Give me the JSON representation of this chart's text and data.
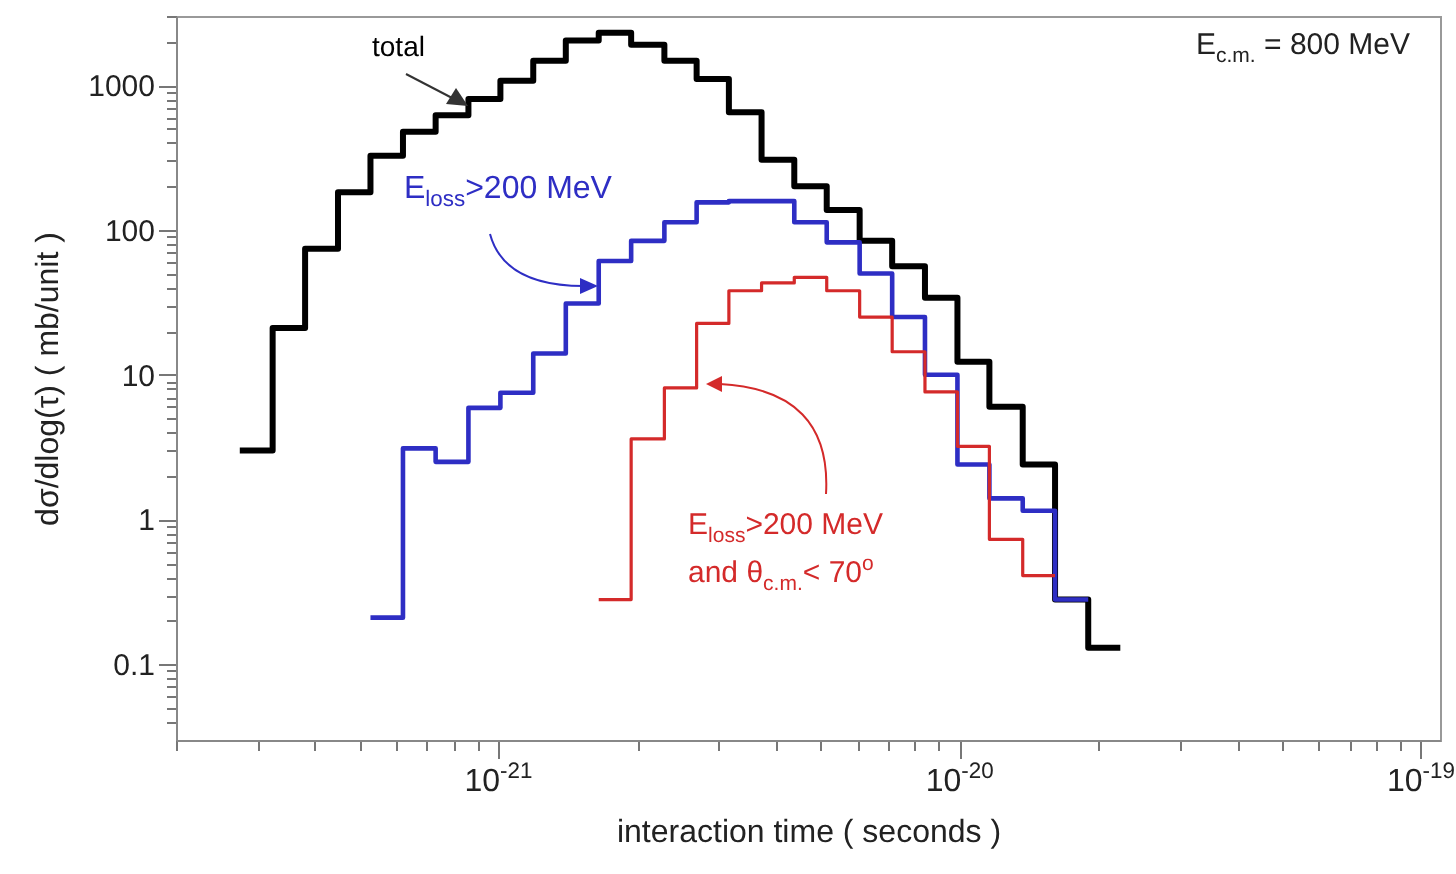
{
  "chart_data": {
    "type": "histogram",
    "xlabel": "interaction time ( seconds )",
    "ylabel": "dσ/dlog(τ)  ( mb/unit )",
    "annotations": [
      "E$_{c.m.}$ = 800 MeV"
    ],
    "log": "xy",
    "legend": false,
    "xlim": [
      2e-22,
      1.1e-19
    ],
    "ylim": [
      0.03,
      3000
    ],
    "xticks": [
      {
        "value": 2e-22,
        "label": null
      },
      {
        "value": 3e-22,
        "label": null
      },
      {
        "value": 4e-22,
        "label": null
      },
      {
        "value": 5e-22,
        "label": null
      },
      {
        "value": 6e-22,
        "label": null
      },
      {
        "value": 7e-22,
        "label": null
      },
      {
        "value": 8e-22,
        "label": null
      },
      {
        "value": 9e-22,
        "label": null
      },
      {
        "value": 1e-21,
        "label": "10$^{-21}$"
      },
      {
        "value": 2e-21,
        "label": null
      },
      {
        "value": 3e-21,
        "label": null
      },
      {
        "value": 4e-21,
        "label": null
      },
      {
        "value": 5e-21,
        "label": null
      },
      {
        "value": 6e-21,
        "label": null
      },
      {
        "value": 7e-21,
        "label": null
      },
      {
        "value": 8e-21,
        "label": null
      },
      {
        "value": 9e-21,
        "label": null
      },
      {
        "value": 1e-20,
        "label": "10$^{-20}$"
      },
      {
        "value": 2e-20,
        "label": null
      },
      {
        "value": 3e-20,
        "label": null
      },
      {
        "value": 4e-20,
        "label": null
      },
      {
        "value": 5e-20,
        "label": null
      },
      {
        "value": 6e-20,
        "label": null
      },
      {
        "value": 7e-20,
        "label": null
      },
      {
        "value": 8e-20,
        "label": null
      },
      {
        "value": 9e-20,
        "label": null
      },
      {
        "value": 1e-19,
        "label": "10$^{-19}$"
      }
    ],
    "yticks": [
      {
        "value": 0.04,
        "label": null
      },
      {
        "value": 0.05,
        "label": null
      },
      {
        "value": 0.06,
        "label": null
      },
      {
        "value": 0.07,
        "label": null
      },
      {
        "value": 0.08,
        "label": null
      },
      {
        "value": 0.09,
        "label": null
      },
      0.1,
      {
        "value": 0.2,
        "label": null
      },
      {
        "value": 0.3,
        "label": null
      },
      {
        "value": 0.4,
        "label": null
      },
      {
        "value": 0.5,
        "label": null
      },
      {
        "value": 0.6,
        "label": null
      },
      {
        "value": 0.7,
        "label": null
      },
      {
        "value": 0.8,
        "label": null
      },
      {
        "value": 0.9,
        "label": null
      },
      1,
      {
        "value": 2,
        "label": null
      },
      {
        "value": 3,
        "label": null
      },
      {
        "value": 4,
        "label": null
      },
      {
        "value": 5,
        "label": null
      },
      {
        "value": 6,
        "label": null
      },
      {
        "value": 7,
        "label": null
      },
      {
        "value": 8,
        "label": null
      },
      {
        "value": 9,
        "label": null
      },
      10,
      {
        "value": 20,
        "label": null
      },
      {
        "value": 30,
        "label": null
      },
      {
        "value": 40,
        "label": null
      },
      {
        "value": 50,
        "label": null
      },
      {
        "value": 60,
        "label": null
      },
      {
        "value": 70,
        "label": null
      },
      {
        "value": 80,
        "label": null
      },
      {
        "value": 90,
        "label": null
      },
      100,
      {
        "value": 200,
        "label": null
      },
      {
        "value": 300,
        "label": null
      },
      {
        "value": 400,
        "label": null
      },
      {
        "value": 500,
        "label": null
      },
      {
        "value": 600,
        "label": null
      },
      {
        "value": 700,
        "label": null
      },
      {
        "value": 800,
        "label": null
      },
      {
        "value": 900,
        "label": null
      },
      1000,
      {
        "value": 2000,
        "label": null
      },
      {
        "value": 3000,
        "label": null
      }
    ],
    "bins": [
      2.75e-22,
      3.24e-22,
      3.81e-22,
      4.49e-22,
      5.28e-22,
      6.21e-22,
      7.31e-22,
      8.61e-22,
      1.01e-21,
      1.19e-21,
      1.4e-21,
      1.65e-21,
      1.94e-21,
      2.29e-21,
      2.69e-21,
      3.16e-21,
      3.72e-21,
      4.38e-21,
      5.15e-21,
      6.07e-21,
      7.14e-21,
      8.41e-21,
      9.89e-21,
      1.16e-20,
      1.37e-20,
      1.61e-20,
      1.9e-20,
      2.23e-20
    ],
    "series": [
      {
        "name": "total",
        "color": "#000000",
        "values": [
          3.0,
          21,
          74,
          182,
          325,
          477,
          618,
          800,
          1070,
          1470,
          2030,
          2300,
          1900,
          1470,
          1100,
          650,
          305,
          200,
          137,
          84,
          56,
          34,
          12.3,
          6.0,
          2.4,
          0.28,
          0.13
        ]
      },
      {
        "name": "E$_{loss}$>200 MeV",
        "color": "#2e2ec4",
        "bins": [
          5.28e-22,
          6.21e-22,
          7.31e-22,
          8.61e-22,
          1.01e-21,
          1.19e-21,
          1.4e-21,
          1.65e-21,
          1.94e-21,
          2.29e-21,
          2.69e-21,
          3.16e-21,
          3.72e-21,
          4.38e-21,
          5.15e-21,
          6.07e-21,
          7.14e-21,
          8.41e-21,
          9.89e-21,
          1.16e-20,
          1.37e-20,
          1.61e-20,
          1.9e-20
        ],
        "values": [
          0.21,
          3.1,
          2.5,
          5.9,
          7.5,
          14,
          31,
          61,
          84,
          113,
          155,
          158,
          158,
          113,
          82,
          50,
          25,
          10,
          2.4,
          1.4,
          1.15,
          0.28
        ]
      },
      {
        "name": "E$_{loss}$>200 MeV and θ$_{c.m.}$< 70$^{o}$",
        "color": "#d42a2a",
        "bins": [
          1.65e-21,
          1.94e-21,
          2.29e-21,
          2.69e-21,
          3.16e-21,
          3.72e-21,
          4.38e-21,
          5.15e-21,
          6.07e-21,
          7.14e-21,
          8.41e-21,
          9.89e-21,
          1.16e-20,
          1.37e-20,
          1.61e-20
        ],
        "values": [
          0.28,
          3.6,
          8.1,
          22.6,
          38,
          43,
          47,
          38,
          25,
          14.4,
          7.6,
          3.2,
          0.73,
          0.41
        ]
      }
    ]
  }
}
